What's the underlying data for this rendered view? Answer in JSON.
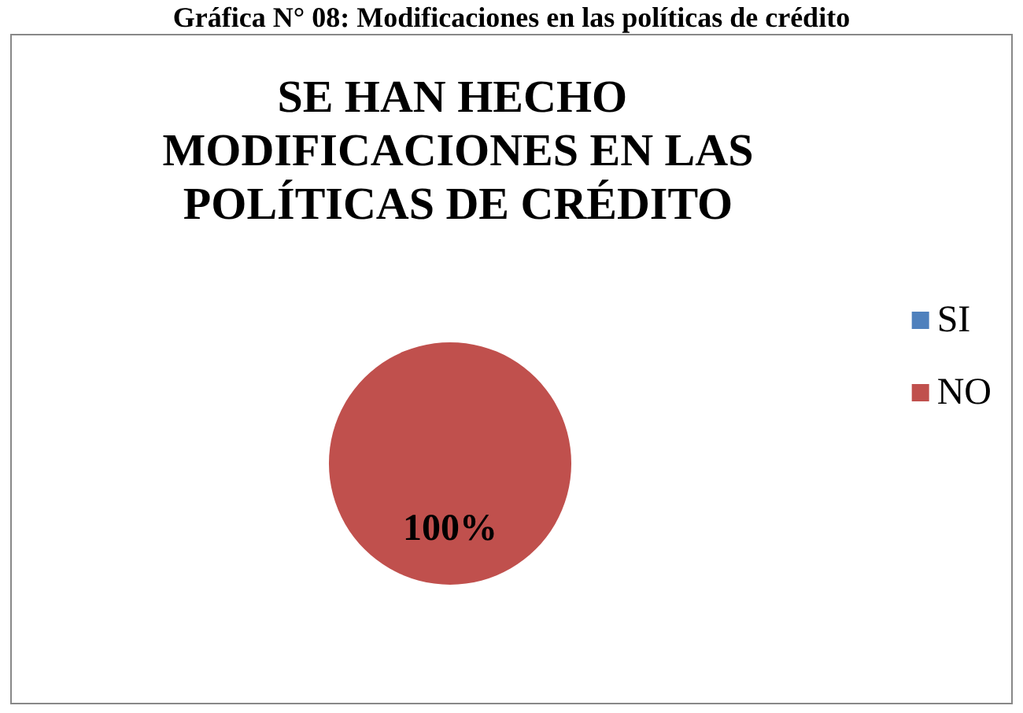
{
  "chart_data": {
    "type": "pie",
    "title": "SE HAN HECHO MODIFICACIONES EN LAS POLÍTICAS DE CRÉDITO",
    "annotations": [
      "Gráfica N° 08: Modificaciones en las políticas de crédito"
    ],
    "categories": [
      "SI",
      "NO"
    ],
    "values": [
      0,
      100
    ],
    "colors": [
      "#4f81bd",
      "#c0504d"
    ],
    "value_labels": [
      null,
      "100%"
    ],
    "legend": "right"
  }
}
